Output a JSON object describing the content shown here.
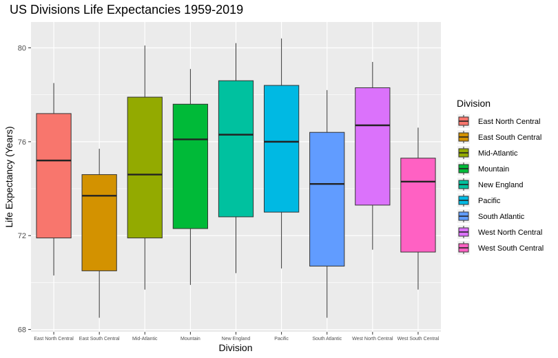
{
  "chart_data": {
    "type": "boxplot",
    "title": "US Divisions Life Expectancies 1959-2019",
    "xlabel": "Division",
    "ylabel": "Life Expectancy (Years)",
    "ylim": [
      67.9,
      81.1
    ],
    "yticks": [
      68,
      72,
      76,
      80
    ],
    "ytick_labels": [
      "68",
      "72",
      "76",
      "80"
    ],
    "grid": true,
    "legend_title": "Division",
    "legend_position": "right",
    "categories": [
      "East North Central",
      "East South Central",
      "Mid-Atlantic",
      "Mountain",
      "New England",
      "Pacific",
      "South Atlantic",
      "West North Central",
      "West South Central"
    ],
    "series": [
      {
        "name": "East North Central",
        "color": "#F8766D",
        "min": 70.3,
        "q1": 71.9,
        "median": 75.2,
        "q3": 77.2,
        "max": 78.5
      },
      {
        "name": "East South Central",
        "color": "#D39200",
        "min": 68.5,
        "q1": 70.5,
        "median": 73.7,
        "q3": 74.6,
        "max": 75.7
      },
      {
        "name": "Mid-Atlantic",
        "color": "#93AA00",
        "min": 69.7,
        "q1": 71.9,
        "median": 74.6,
        "q3": 77.9,
        "max": 80.1
      },
      {
        "name": "Mountain",
        "color": "#00BA38",
        "min": 69.9,
        "q1": 72.3,
        "median": 76.1,
        "q3": 77.6,
        "max": 79.1
      },
      {
        "name": "New England",
        "color": "#00C19F",
        "min": 70.4,
        "q1": 72.8,
        "median": 76.3,
        "q3": 78.6,
        "max": 80.2
      },
      {
        "name": "Pacific",
        "color": "#00B9E3",
        "min": 70.6,
        "q1": 73.0,
        "median": 76.0,
        "q3": 78.4,
        "max": 80.4
      },
      {
        "name": "South Atlantic",
        "color": "#619CFF",
        "min": 68.5,
        "q1": 70.7,
        "median": 74.2,
        "q3": 76.4,
        "max": 78.2
      },
      {
        "name": "West North Central",
        "color": "#DB72FB",
        "min": 71.4,
        "q1": 73.3,
        "median": 76.7,
        "q3": 78.3,
        "max": 79.4
      },
      {
        "name": "West South Central",
        "color": "#FF61C3",
        "min": 69.7,
        "q1": 71.3,
        "median": 74.3,
        "q3": 75.3,
        "max": 76.6
      }
    ]
  }
}
